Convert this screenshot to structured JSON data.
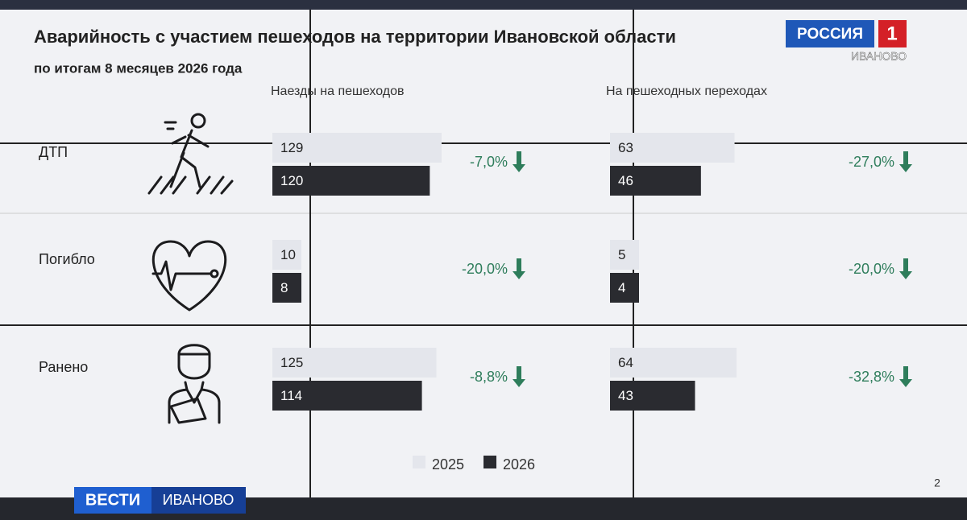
{
  "chart_data": {
    "type": "bar",
    "orientation": "horizontal",
    "title": "Аварийность с участием пешеходов на территории Ивановской области",
    "subtitle": "по итогам 8 месяцев 2026 года",
    "groups": [
      "Наезды на пешеходов",
      "На пешеходных переходах"
    ],
    "categories": [
      "ДТП",
      "Погибло",
      "Ранено"
    ],
    "series": [
      {
        "name": "2025",
        "color": "#e4e6ec",
        "values": [
          [
            129,
            63
          ],
          [
            10,
            5
          ],
          [
            125,
            64
          ]
        ]
      },
      {
        "name": "2026",
        "color": "#2a2b30",
        "values": [
          [
            120,
            46
          ],
          [
            8,
            4
          ],
          [
            114,
            43
          ]
        ]
      }
    ],
    "changes": [
      [
        "-7,0%",
        "-27,0%"
      ],
      [
        "-20,0%",
        "-20,0%"
      ],
      [
        "-8,8%",
        "-32,8%"
      ]
    ],
    "change_color": "#2e7d5b"
  },
  "overlay": {
    "channel": "РОССИЯ",
    "channel_number": "1",
    "region": "ИВАНОВО",
    "program": "ВЕСТИ",
    "program_region": "ИВАНОВО",
    "page_number": "2"
  }
}
